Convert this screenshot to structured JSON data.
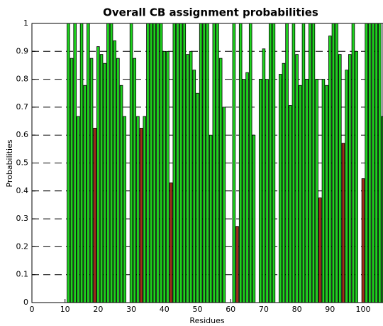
{
  "chart_data": {
    "type": "bar",
    "title": "Overall CB assignment probabilities",
    "xlabel": "Residues",
    "ylabel": "Probabilities",
    "xlim": [
      0,
      106
    ],
    "ylim": [
      0,
      1
    ],
    "xticks": [
      0,
      10,
      20,
      30,
      40,
      50,
      60,
      70,
      80,
      90,
      100
    ],
    "yticks": [
      0,
      0.1,
      0.2,
      0.3,
      0.4,
      0.5,
      0.6,
      0.7,
      0.8,
      0.9,
      1
    ],
    "grid": true,
    "series": [
      {
        "color": "#1ed21e",
        "x": [
          11,
          12,
          13,
          14,
          15,
          16,
          17,
          18,
          20,
          21,
          22,
          23,
          24,
          25,
          26,
          27,
          28,
          30,
          31,
          32,
          34,
          35,
          36,
          37,
          38,
          39,
          40,
          41,
          43,
          44,
          45,
          46,
          47,
          48,
          49,
          50,
          51,
          52,
          53,
          54,
          55,
          56,
          57,
          58,
          61,
          63,
          64,
          65,
          66,
          67,
          69,
          70,
          71,
          72,
          73,
          75,
          76,
          77,
          78,
          79,
          80,
          81,
          82,
          83,
          84,
          85,
          86,
          88,
          89,
          90,
          91,
          92,
          93,
          95,
          96,
          97,
          98,
          101,
          102,
          103,
          104,
          105,
          106
        ],
        "values": [
          1,
          0.875,
          1,
          0.667,
          1,
          0.778,
          1,
          0.875,
          0.917,
          0.889,
          0.857,
          1,
          1,
          0.938,
          0.875,
          0.778,
          0.667,
          1,
          0.875,
          0.667,
          0.667,
          1,
          1,
          1,
          1,
          1,
          0.9,
          0.9,
          1,
          1,
          1,
          1,
          0.889,
          0.9,
          0.833,
          0.75,
          1,
          1,
          1,
          0.6,
          1,
          1,
          0.875,
          0.7,
          1,
          1,
          0.8,
          0.824,
          1,
          0.6,
          0.8,
          0.909,
          0.8,
          1,
          1,
          0.818,
          0.857,
          1,
          0.706,
          1,
          0.889,
          0.778,
          1,
          0.8,
          1,
          1,
          0.8,
          0.8,
          0.778,
          0.955,
          1,
          1,
          0.889,
          0.833,
          0.889,
          1,
          0.9,
          1,
          1,
          1,
          1,
          1,
          0.667
        ]
      },
      {
        "color": "#a0301a",
        "x": [
          19,
          33,
          42,
          62,
          87,
          94,
          100
        ],
        "values": [
          0.625,
          0.625,
          0.429,
          0.273,
          0.375,
          0.571,
          0.444
        ]
      }
    ]
  }
}
